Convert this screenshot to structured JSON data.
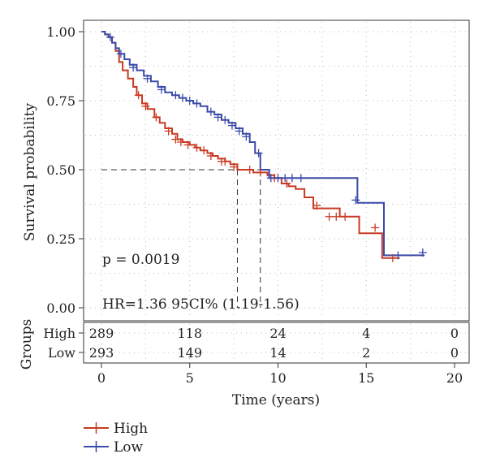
{
  "chart_data": {
    "type": "line",
    "subtype": "kaplan-meier",
    "xlabel": "Time (years)",
    "ylabel": "Survival probability",
    "xlim": [
      0,
      20
    ],
    "ylim": [
      0,
      1
    ],
    "x_ticks": [
      0,
      5,
      10,
      15,
      20
    ],
    "y_ticks": [
      "0.00",
      "0.25",
      "0.50",
      "0.75",
      "1.00"
    ],
    "grid": "dotted",
    "legend_position": "bottom-left",
    "annotations": {
      "p_value": "p = 0.0019",
      "hr": "HR=1.36 95CI% (1.19-1.56)"
    },
    "median_survival": {
      "y": 0.5,
      "High": 7.7,
      "Low": 9.0
    },
    "series": [
      {
        "name": "High",
        "color": "#c83a22",
        "x": [
          0,
          0.2,
          0.4,
          0.6,
          0.8,
          1.0,
          1.2,
          1.5,
          1.8,
          2.0,
          2.3,
          2.6,
          3.0,
          3.3,
          3.6,
          4.0,
          4.3,
          4.6,
          5.0,
          5.3,
          5.6,
          6.0,
          6.3,
          6.6,
          7.0,
          7.3,
          7.7,
          8.2,
          8.6,
          9.0,
          9.4,
          9.8,
          10.2,
          10.6,
          11.0,
          11.5,
          12.0,
          12.5,
          13.5,
          14.5,
          14.6,
          15.5,
          15.9,
          16.9
        ],
        "y": [
          1.0,
          0.99,
          0.98,
          0.96,
          0.93,
          0.89,
          0.86,
          0.83,
          0.8,
          0.77,
          0.74,
          0.72,
          0.69,
          0.67,
          0.65,
          0.63,
          0.61,
          0.6,
          0.59,
          0.58,
          0.57,
          0.56,
          0.55,
          0.54,
          0.53,
          0.52,
          0.5,
          0.5,
          0.49,
          0.49,
          0.48,
          0.47,
          0.45,
          0.44,
          0.43,
          0.4,
          0.36,
          0.36,
          0.33,
          0.33,
          0.27,
          0.27,
          0.18,
          0.18
        ],
        "censor_marks": [
          [
            2.1,
            0.77
          ],
          [
            2.5,
            0.73
          ],
          [
            3.1,
            0.69
          ],
          [
            3.8,
            0.64
          ],
          [
            4.2,
            0.61
          ],
          [
            4.5,
            0.6
          ],
          [
            4.9,
            0.59
          ],
          [
            5.4,
            0.58
          ],
          [
            5.8,
            0.57
          ],
          [
            6.2,
            0.55
          ],
          [
            6.8,
            0.53
          ],
          [
            7.0,
            0.53
          ],
          [
            7.5,
            0.51
          ],
          [
            8.4,
            0.5
          ],
          [
            9.0,
            0.49
          ],
          [
            9.8,
            0.47
          ],
          [
            10.5,
            0.45
          ],
          [
            12.2,
            0.37
          ],
          [
            12.9,
            0.33
          ],
          [
            13.3,
            0.33
          ],
          [
            13.8,
            0.33
          ],
          [
            15.5,
            0.29
          ],
          [
            16.5,
            0.18
          ]
        ]
      },
      {
        "name": "Low",
        "color": "#3a4aa8",
        "x": [
          0,
          0.2,
          0.4,
          0.6,
          0.8,
          1.0,
          1.3,
          1.6,
          2.0,
          2.4,
          2.8,
          3.2,
          3.6,
          4.0,
          4.4,
          4.8,
          5.2,
          5.6,
          6.0,
          6.4,
          6.8,
          7.2,
          7.6,
          8.0,
          8.4,
          8.7,
          9.0,
          9.5,
          10.0,
          11.0,
          12.0,
          13.0,
          14.0,
          14.5,
          15.0,
          15.5,
          16.0,
          17.0,
          18.3
        ],
        "y": [
          1.0,
          0.99,
          0.98,
          0.96,
          0.94,
          0.92,
          0.9,
          0.88,
          0.86,
          0.84,
          0.82,
          0.8,
          0.78,
          0.77,
          0.76,
          0.75,
          0.74,
          0.73,
          0.71,
          0.7,
          0.68,
          0.67,
          0.65,
          0.63,
          0.6,
          0.56,
          0.5,
          0.47,
          0.47,
          0.47,
          0.47,
          0.47,
          0.47,
          0.38,
          0.38,
          0.38,
          0.19,
          0.19,
          0.19
        ],
        "censor_marks": [
          [
            0.5,
            0.98
          ],
          [
            1.1,
            0.92
          ],
          [
            1.8,
            0.87
          ],
          [
            2.6,
            0.83
          ],
          [
            3.4,
            0.79
          ],
          [
            4.2,
            0.77
          ],
          [
            4.6,
            0.76
          ],
          [
            5.0,
            0.75
          ],
          [
            5.4,
            0.74
          ],
          [
            6.2,
            0.71
          ],
          [
            6.6,
            0.69
          ],
          [
            7.0,
            0.68
          ],
          [
            7.4,
            0.66
          ],
          [
            7.8,
            0.64
          ],
          [
            8.2,
            0.62
          ],
          [
            8.9,
            0.56
          ],
          [
            9.6,
            0.47
          ],
          [
            10.0,
            0.47
          ],
          [
            10.4,
            0.47
          ],
          [
            10.8,
            0.47
          ],
          [
            11.3,
            0.47
          ],
          [
            14.4,
            0.39
          ],
          [
            16.8,
            0.19
          ],
          [
            18.2,
            0.2
          ]
        ]
      }
    ],
    "risk_table": {
      "title": "Groups",
      "rows": [
        {
          "name": "High",
          "color": "#c83a22",
          "values": [
            "289",
            "118",
            "24",
            "4",
            "0"
          ]
        },
        {
          "name": "Low",
          "color": "#3a4aa8",
          "values": [
            "293",
            "149",
            "14",
            "2",
            "0"
          ]
        }
      ],
      "times": [
        0,
        5,
        10,
        15,
        20
      ]
    }
  }
}
